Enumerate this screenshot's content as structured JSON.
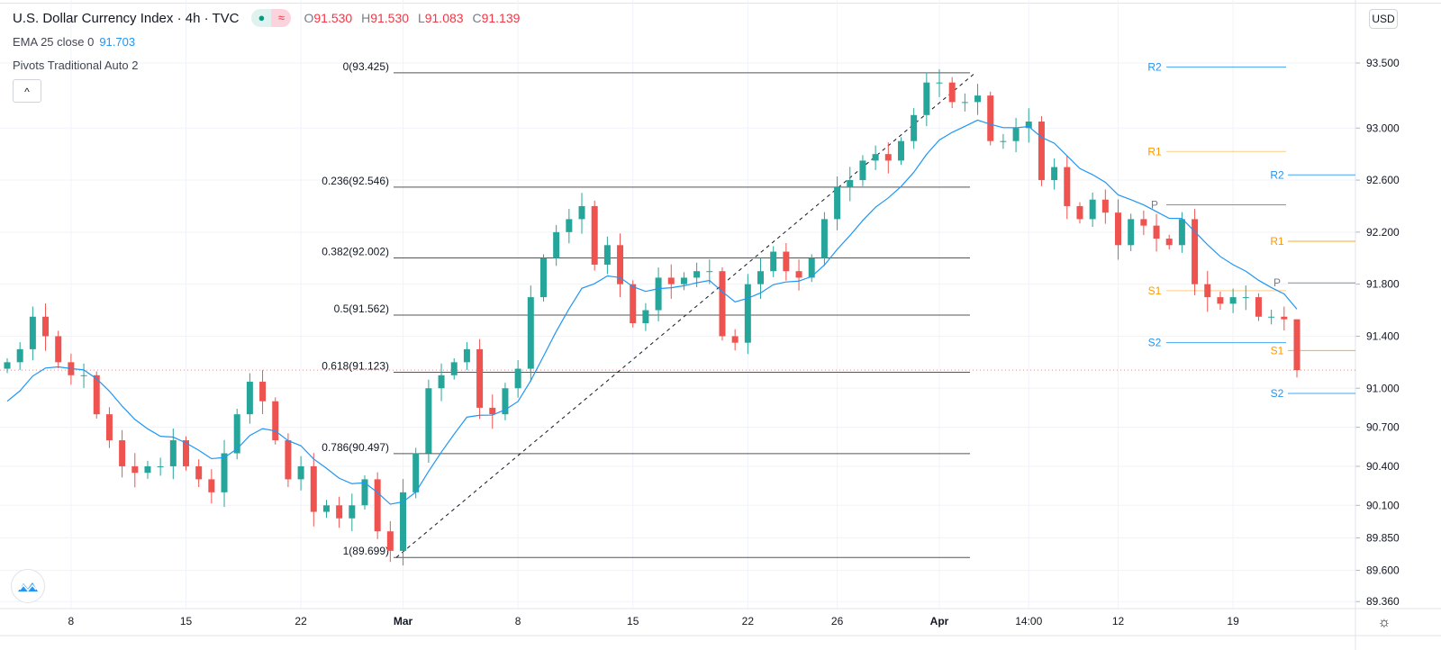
{
  "header": {
    "title": "U.S. Dollar Currency Index · 4h · TVC",
    "ohlc": {
      "o_label": "O",
      "o": "91.530",
      "h_label": "H",
      "h": "91.530",
      "l_label": "L",
      "l": "91.083",
      "c_label": "C",
      "c": "91.139"
    },
    "market_dot_icon": "dot-icon",
    "wave_icon": "≈",
    "ema_label": "EMA 25 close 0",
    "ema_value": "91.703",
    "pivots_label": "Pivots Traditional Auto 2",
    "collapse_icon": "^",
    "currency": "USD"
  },
  "colors": {
    "up": "#26a69a",
    "down": "#ef5350",
    "ema": "#2196f3",
    "fib": "#131722",
    "pivot_blue": "#2196f3",
    "pivot_orange": "#ff9800",
    "pivot_gray": "#787b86",
    "grid": "#f0f3fa",
    "price_line": "#ef5350"
  },
  "chart_data": {
    "type": "candlestick",
    "title": "U.S. Dollar Currency Index · 4h · TVC",
    "ylim": [
      89.25,
      93.9
    ],
    "y_ticks": [
      "93.500",
      "93.000",
      "92.600",
      "92.200",
      "91.800",
      "91.400",
      "91.000",
      "90.700",
      "90.400",
      "90.100",
      "89.850",
      "89.600",
      "89.360"
    ],
    "x_ticks": [
      {
        "label": "8",
        "bold": false
      },
      {
        "label": "15",
        "bold": false
      },
      {
        "label": "22",
        "bold": false
      },
      {
        "label": "Mar",
        "bold": true
      },
      {
        "label": "8",
        "bold": false
      },
      {
        "label": "15",
        "bold": false
      },
      {
        "label": "22",
        "bold": false
      },
      {
        "label": "26",
        "bold": false
      },
      {
        "label": "Apr",
        "bold": true
      },
      {
        "label": "14:00",
        "bold": false
      },
      {
        "label": "12",
        "bold": false
      },
      {
        "label": "19",
        "bold": false
      }
    ],
    "x_tick_candle_index": [
      5,
      14,
      23,
      31,
      40,
      49,
      58,
      65,
      73,
      80,
      87,
      96
    ],
    "closes": [
      91.2,
      91.3,
      91.55,
      91.4,
      91.2,
      91.1,
      91.1,
      90.8,
      90.6,
      90.4,
      90.35,
      90.4,
      90.4,
      90.6,
      90.4,
      90.3,
      90.2,
      90.5,
      90.8,
      91.05,
      90.9,
      90.6,
      90.3,
      90.4,
      90.05,
      90.1,
      90.0,
      90.1,
      90.3,
      89.9,
      89.75,
      90.2,
      90.5,
      91.0,
      91.1,
      91.2,
      91.3,
      90.85,
      90.8,
      91.0,
      91.15,
      91.7,
      92.0,
      92.2,
      92.3,
      92.4,
      91.95,
      92.1,
      91.8,
      91.5,
      91.6,
      91.85,
      91.8,
      91.85,
      91.9,
      91.9,
      91.4,
      91.35,
      91.8,
      91.9,
      92.05,
      91.9,
      91.85,
      92.0,
      92.3,
      92.55,
      92.6,
      92.75,
      92.8,
      92.75,
      92.9,
      93.1,
      93.35,
      93.35,
      93.2,
      93.2,
      93.25,
      92.9,
      92.9,
      93.0,
      93.05,
      92.6,
      92.7,
      92.4,
      92.3,
      92.45,
      92.35,
      92.1,
      92.3,
      92.25,
      92.15,
      92.1,
      92.3,
      91.8,
      91.7,
      91.65,
      91.7,
      91.7,
      91.55,
      91.55,
      91.53,
      91.139
    ],
    "last_candle": {
      "open": 91.53,
      "high": 91.53,
      "low": 91.083,
      "close": 91.139
    },
    "ema": {
      "period": 25,
      "source": "close",
      "last": 91.703
    },
    "fibonacci": {
      "from": 89.699,
      "to": 93.425,
      "levels": [
        {
          "label": "0(93.425)",
          "value": 93.425
        },
        {
          "label": "0.236(92.546)",
          "value": 92.546
        },
        {
          "label": "0.382(92.002)",
          "value": 92.002
        },
        {
          "label": "0.5(91.562)",
          "value": 91.562
        },
        {
          "label": "0.618(91.123)",
          "value": 91.123
        },
        {
          "label": "0.786(90.497)",
          "value": 90.497
        },
        {
          "label": "1(89.699)",
          "value": 89.699
        }
      ]
    },
    "pivots": [
      {
        "period": "previous",
        "levels": [
          {
            "label": "R2",
            "value": 93.47,
            "color": "blue"
          },
          {
            "label": "R1",
            "value": 92.82,
            "color": "orange"
          },
          {
            "label": "P",
            "value": 92.41,
            "color": "gray"
          },
          {
            "label": "S1",
            "value": 91.75,
            "color": "orange"
          },
          {
            "label": "S2",
            "value": 91.35,
            "color": "blue"
          }
        ]
      },
      {
        "period": "current",
        "levels": [
          {
            "label": "R2",
            "value": 92.64,
            "color": "blue"
          },
          {
            "label": "R1",
            "value": 92.13,
            "color": "orange"
          },
          {
            "label": "P",
            "value": 91.81,
            "color": "gray"
          },
          {
            "label": "S1",
            "value": 91.29,
            "color": "orange"
          },
          {
            "label": "S2",
            "value": 90.96,
            "color": "blue"
          }
        ]
      }
    ],
    "current_price": 91.139
  }
}
